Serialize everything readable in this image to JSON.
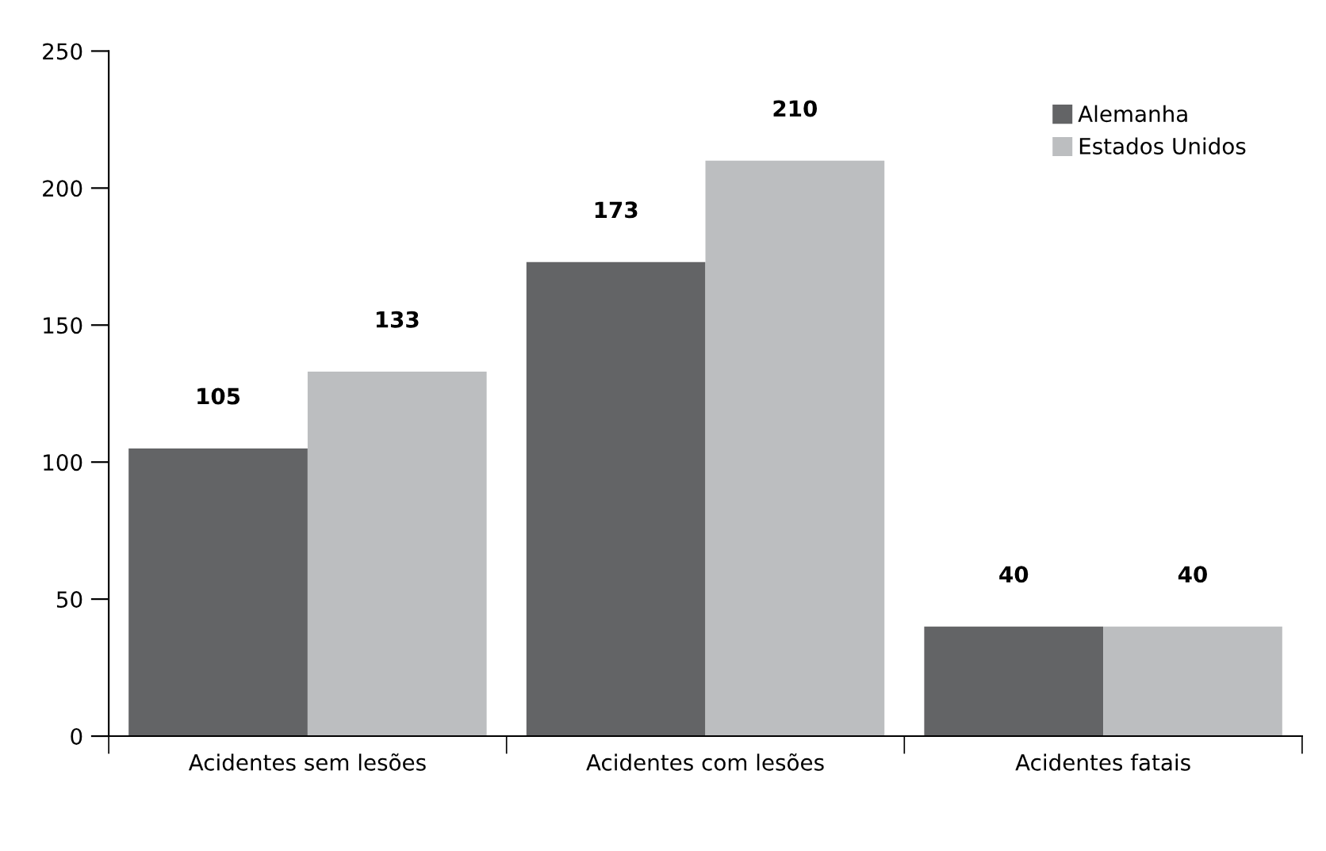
{
  "chart_data": {
    "type": "bar",
    "categories": [
      "Acidentes sem lesões",
      "Acidentes com lesões",
      "Acidentes fatais"
    ],
    "series": [
      {
        "name": "Alemanha",
        "color": "#636466",
        "values": [
          105,
          173,
          40
        ]
      },
      {
        "name": "Estados Unidos",
        "color": "#bcbec0",
        "values": [
          133,
          210,
          40
        ]
      }
    ],
    "ylim": [
      0,
      250
    ],
    "yticks": [
      0,
      50,
      100,
      150,
      200,
      250
    ],
    "data_labels": true,
    "legend": "top right",
    "grid": false
  }
}
